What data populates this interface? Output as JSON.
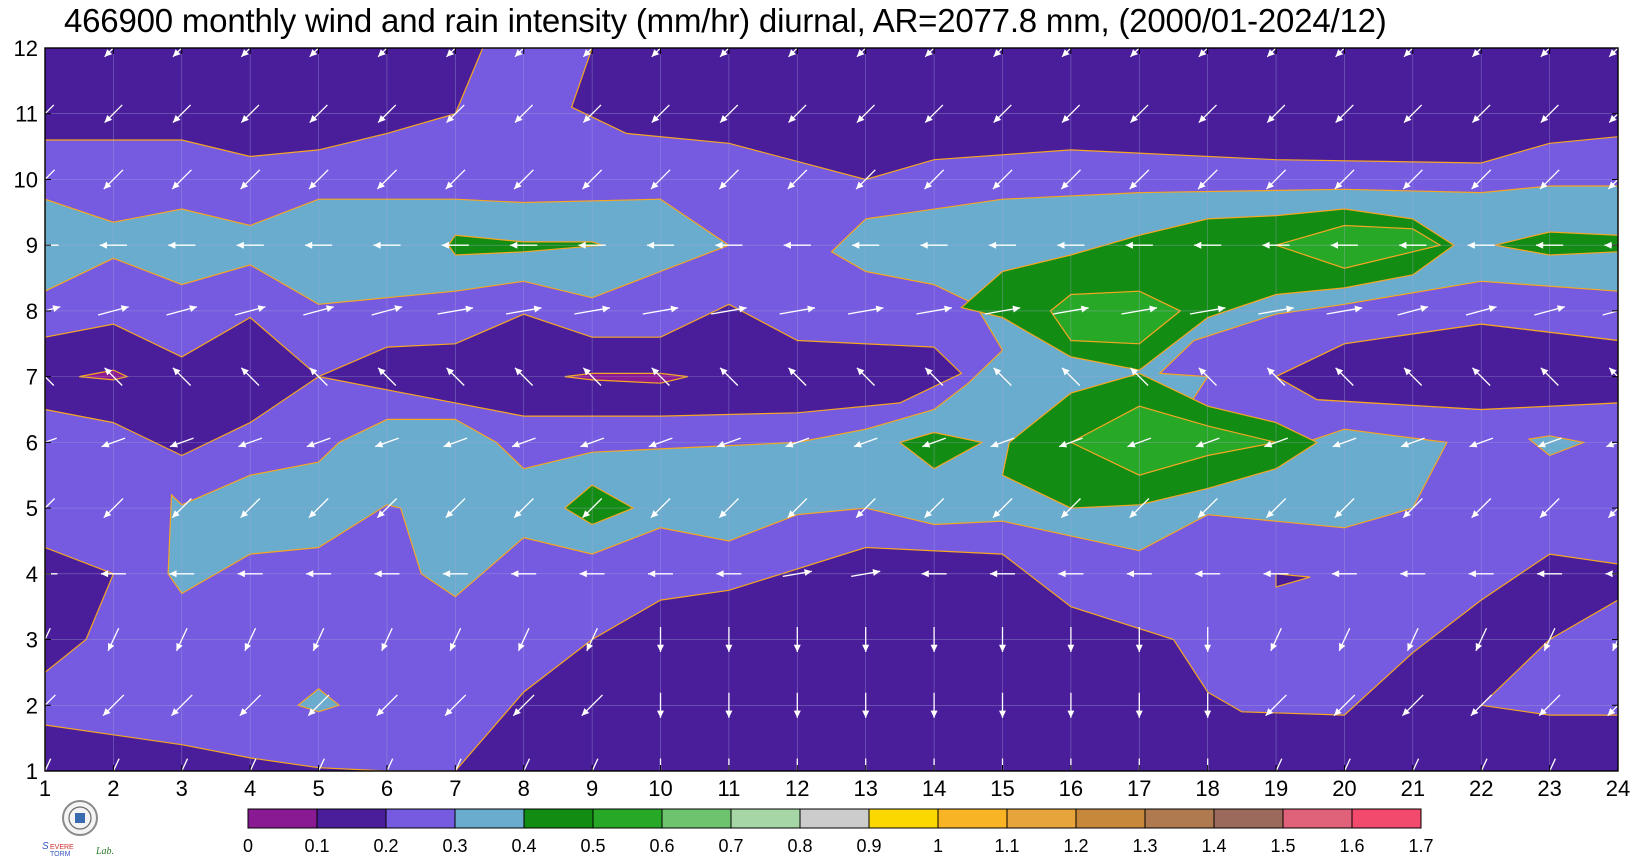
{
  "chart_data": {
    "type": "heatmap",
    "title": "466900 monthly wind and rain intensity (mm/hr) diurnal, AR=2077.8 mm, (2000/01-2024/12)",
    "xlabel": "",
    "ylabel": "",
    "x": [
      1,
      2,
      3,
      4,
      5,
      6,
      7,
      8,
      9,
      10,
      11,
      12,
      13,
      14,
      15,
      16,
      17,
      18,
      19,
      20,
      21,
      22,
      23,
      24
    ],
    "y": [
      1,
      2,
      3,
      4,
      5,
      6,
      7,
      8,
      9,
      10,
      11,
      12
    ],
    "xlim": [
      1,
      24
    ],
    "ylim": [
      1,
      12
    ],
    "x_tick_labels": [
      "1",
      "2",
      "3",
      "4",
      "5",
      "6",
      "7",
      "8",
      "9",
      "10",
      "11",
      "12",
      "13",
      "14",
      "15",
      "16",
      "17",
      "18",
      "19",
      "20",
      "21",
      "22",
      "23",
      "24"
    ],
    "y_tick_labels": [
      "1",
      "2",
      "3",
      "4",
      "5",
      "6",
      "7",
      "8",
      "9",
      "10",
      "11",
      "12"
    ],
    "contour_levels": [
      0,
      0.1,
      0.2,
      0.3,
      0.4,
      0.5,
      0.6,
      0.7,
      0.8,
      0.9,
      1,
      1.1,
      1.2,
      1.3,
      1.4,
      1.5,
      1.6,
      1.7
    ],
    "colorbar_labels": [
      "0",
      "0.1",
      "0.2",
      "0.3",
      "0.4",
      "0.5",
      "0.6",
      "0.7",
      "0.8",
      "0.9",
      "1",
      "1.1",
      "1.2",
      "1.3",
      "1.4",
      "1.5",
      "1.6",
      "1.7"
    ],
    "colorbar_colors": [
      "#8a1a94",
      "#4a1e9a",
      "#765ae0",
      "#6aaccd",
      "#128c12",
      "#27a827",
      "#6ec46e",
      "#a6d6a6",
      "#cccccc",
      "#fbd800",
      "#f8b424",
      "#e7a43a",
      "#c8883c",
      "#b07a50",
      "#9c6a5c",
      "#e0627a",
      "#f24a6c",
      "#d02c40"
    ],
    "contour_line_color": "#f5a623",
    "regions": [
      {
        "level": 0.4,
        "hour": 9,
        "month": 5
      },
      {
        "level": 0.4,
        "hour": 14,
        "month": 6
      },
      {
        "level": 0.4,
        "hour": 17,
        "month": 6
      },
      {
        "level": 0.5,
        "hour": 17,
        "month": 6
      },
      {
        "level": 0.4,
        "hour": 17,
        "month": 8
      },
      {
        "level": 0.5,
        "hour": 16,
        "month": 8
      },
      {
        "level": 0.4,
        "hour": 20,
        "month": 9
      },
      {
        "level": 0.5,
        "hour": 20,
        "month": 9
      },
      {
        "level": 0.4,
        "hour": 8,
        "month": 9
      },
      {
        "level": 0.4,
        "hour": 23,
        "month": 9
      },
      {
        "level": 0.0,
        "hour": 9,
        "month": 7
      },
      {
        "level": 0.0,
        "hour": 2,
        "month": 7
      }
    ],
    "wind": {
      "description": "hourly-monthly mean wind vectors",
      "months": {
        "1": {
          "dir": "south-southwest",
          "speed": 0.6
        },
        "2": {
          "dir": "southwest",
          "speed": 0.7
        },
        "3": {
          "dir": "south-southwest",
          "speed": 0.5
        },
        "4": {
          "dir": "west",
          "speed": 0.5
        },
        "5": {
          "dir": "southwest",
          "speed": 0.6
        },
        "6": {
          "dir": "west-southwest",
          "speed": 0.5
        },
        "7": {
          "dir": "northwest",
          "speed": 0.5
        },
        "8": {
          "dir": "east-northeast",
          "speed": 1.0
        },
        "9": {
          "dir": "west",
          "speed": 0.6
        },
        "10": {
          "dir": "southwest",
          "speed": 0.6
        },
        "11": {
          "dir": "southwest",
          "speed": 0.5
        },
        "12": {
          "dir": "southwest",
          "speed": 0.5
        }
      }
    }
  },
  "colors": {
    "background_level": "#4a1e9a",
    "arrow": "#ffffff",
    "grid": "#a8a8d8"
  },
  "logo": {
    "icon": "severe-storm-lab-seal-icon",
    "text": "Severe Storm Lab."
  }
}
